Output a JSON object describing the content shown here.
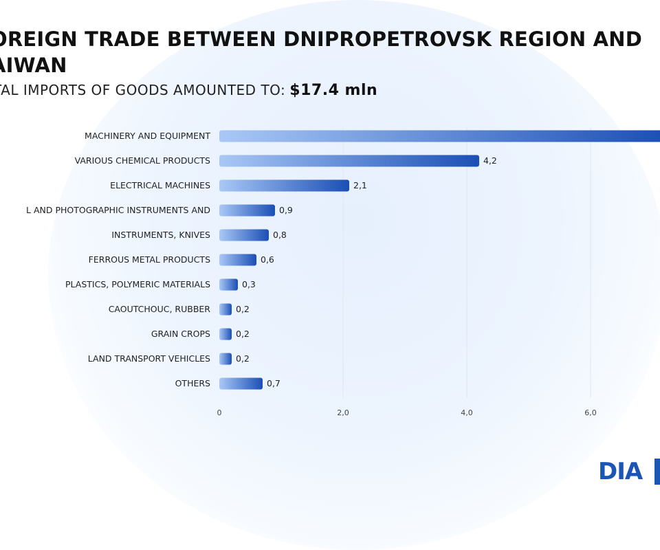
{
  "header": {
    "title": "OREIGN TRADE BETWEEN DNIPROPETROVSK REGION AND AIWAN",
    "subtitle_label": "TAL IMPORTS OF GOODS AMOUNTED TO:",
    "subtitle_value": "$17.4 mln"
  },
  "logo": {
    "text": "DIA"
  },
  "colors": {
    "bar_light": "#a9c8f6",
    "bar_dark": "#1b4fb5",
    "grid": "#e3e6ea",
    "label": "#222222"
  },
  "chart_data": {
    "type": "bar",
    "orientation": "horizontal",
    "categories": [
      "MACHINERY AND EQUIPMENT",
      "VARIOUS CHEMICAL PRODUCTS",
      "ELECTRICAL MACHINES",
      "L AND PHOTOGRAPHIC INSTRUMENTS AND",
      "INSTRUMENTS, KNIVES",
      "FERROUS METAL PRODUCTS",
      "PLASTICS, POLYMERIC MATERIALS",
      "CAOUTCHOUC, RUBBER",
      "GRAIN CROPS",
      "LAND TRANSPORT VEHICLES",
      "OTHERS"
    ],
    "values": [
      7.4,
      4.2,
      2.1,
      0.9,
      0.8,
      0.6,
      0.3,
      0.2,
      0.2,
      0.2,
      0.7
    ],
    "value_labels": [
      "",
      "4,2",
      "2,1",
      "0,9",
      "0,8",
      "0,6",
      "0,3",
      "0,2",
      "0,2",
      "0,2",
      "0,7"
    ],
    "xticks": [
      0,
      2,
      4,
      6
    ],
    "xtick_labels": [
      "0",
      "2,0",
      "4,0",
      "6,0"
    ],
    "xlim": [
      0,
      7.2
    ],
    "grid": true
  }
}
